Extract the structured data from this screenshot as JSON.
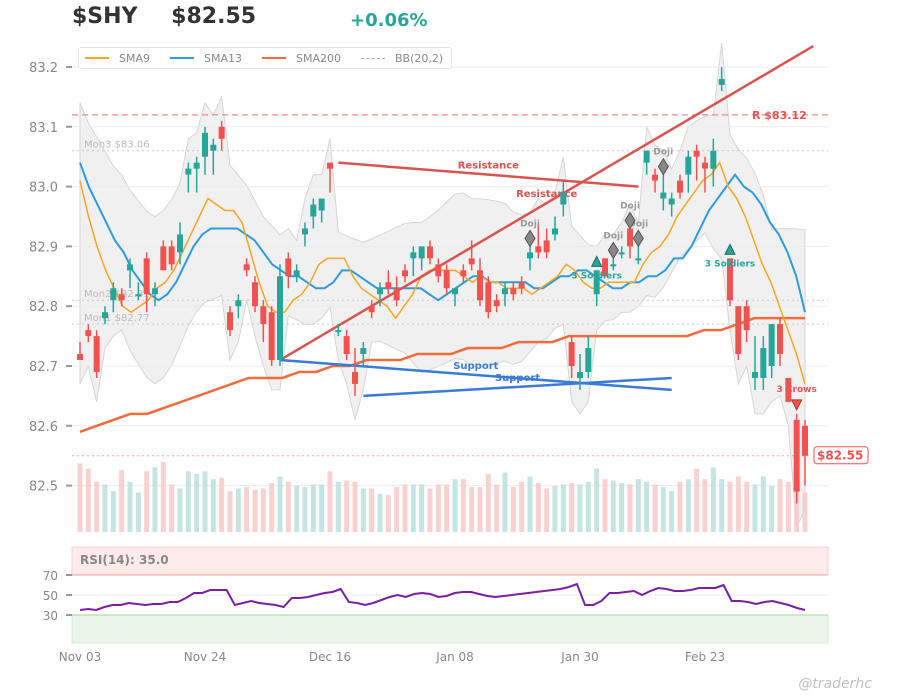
{
  "header": {
    "ticker": "$SHY",
    "price": "$82.55",
    "change": "+0.06%"
  },
  "legend": [
    {
      "label": "SMA9",
      "color": "#f5a623"
    },
    {
      "label": "SMA13",
      "color": "#2d9cdb"
    },
    {
      "label": "SMA200",
      "color": "#f26b38"
    },
    {
      "label": "BB(20,2)",
      "color": "#aaaaaa",
      "dashed": true
    }
  ],
  "watermark": "@traderhc",
  "colors": {
    "up": "#26a69a",
    "down": "#ef5350",
    "rsi": "#7b1fa2",
    "resistance": "#d9534f",
    "support": "#3a7bd5"
  },
  "chart_data": {
    "type": "candlestick",
    "title": "$SHY $82.55 +0.06%",
    "xlabel": "",
    "ylabel": "",
    "ylim": [
      82.44,
      83.24
    ],
    "y_ticks": [
      82.5,
      82.6,
      82.7,
      82.8,
      82.9,
      83.0,
      83.1,
      83.2
    ],
    "x_ticks": [
      {
        "label": "Nov 03",
        "i": 0
      },
      {
        "label": "Nov 24",
        "i": 15
      },
      {
        "label": "Dec 16",
        "i": 30
      },
      {
        "label": "Jan 08",
        "i": 45
      },
      {
        "label": "Jan 30",
        "i": 60
      },
      {
        "label": "Feb 23",
        "i": 75
      }
    ],
    "grid": true,
    "ohlc": [
      [
        82.72,
        82.74,
        82.71,
        82.71
      ],
      [
        82.76,
        82.77,
        82.74,
        82.75
      ],
      [
        82.75,
        82.76,
        82.68,
        82.69
      ],
      [
        82.78,
        82.8,
        82.77,
        82.79
      ],
      [
        82.81,
        82.84,
        82.79,
        82.83
      ],
      [
        82.82,
        82.83,
        82.8,
        82.81
      ],
      [
        82.86,
        82.88,
        82.83,
        82.87
      ],
      [
        82.82,
        82.84,
        82.81,
        82.82
      ],
      [
        82.88,
        82.89,
        82.79,
        82.82
      ],
      [
        82.82,
        82.84,
        82.8,
        82.83
      ],
      [
        82.9,
        82.91,
        82.86,
        82.86
      ],
      [
        82.9,
        82.91,
        82.86,
        82.87
      ],
      [
        82.89,
        82.94,
        82.87,
        82.92
      ],
      [
        83.02,
        83.04,
        82.99,
        83.03
      ],
      [
        83.03,
        83.05,
        82.99,
        83.04
      ],
      [
        83.05,
        83.1,
        83.02,
        83.09
      ],
      [
        83.06,
        83.08,
        83.02,
        83.07
      ],
      [
        83.1,
        83.11,
        83.06,
        83.08
      ],
      [
        82.79,
        82.8,
        82.75,
        82.76
      ],
      [
        82.8,
        82.82,
        82.78,
        82.81
      ],
      [
        82.87,
        82.88,
        82.85,
        82.86
      ],
      [
        82.84,
        82.85,
        82.79,
        82.8
      ],
      [
        82.8,
        82.81,
        82.74,
        82.77
      ],
      [
        82.79,
        82.8,
        82.7,
        82.71
      ],
      [
        82.71,
        82.87,
        82.7,
        82.85
      ],
      [
        82.88,
        82.89,
        82.83,
        82.85
      ],
      [
        82.85,
        82.87,
        82.84,
        82.86
      ],
      [
        82.92,
        82.94,
        82.9,
        82.93
      ],
      [
        82.95,
        82.98,
        82.93,
        82.97
      ],
      [
        82.96,
        82.98,
        82.94,
        82.98
      ],
      [
        83.04,
        83.04,
        82.99,
        83.03
      ],
      [
        82.76,
        82.77,
        82.75,
        82.76
      ],
      [
        82.75,
        82.76,
        82.71,
        82.72
      ],
      [
        82.69,
        82.73,
        82.65,
        82.67
      ],
      [
        82.72,
        82.74,
        82.7,
        82.73
      ],
      [
        82.8,
        82.81,
        82.78,
        82.79
      ],
      [
        82.82,
        82.84,
        82.8,
        82.83
      ],
      [
        82.84,
        82.86,
        82.82,
        82.83
      ],
      [
        82.83,
        82.85,
        82.8,
        82.81
      ],
      [
        82.86,
        82.87,
        82.84,
        82.85
      ],
      [
        82.88,
        82.9,
        82.85,
        82.89
      ],
      [
        82.88,
        82.9,
        82.86,
        82.9
      ],
      [
        82.9,
        82.91,
        82.87,
        82.88
      ],
      [
        82.87,
        82.88,
        82.84,
        82.85
      ],
      [
        82.86,
        82.87,
        82.82,
        82.83
      ],
      [
        82.82,
        82.83,
        82.8,
        82.83
      ],
      [
        82.86,
        82.87,
        82.84,
        82.85
      ],
      [
        82.88,
        82.91,
        82.86,
        82.87
      ],
      [
        82.86,
        82.88,
        82.8,
        82.81
      ],
      [
        82.84,
        82.85,
        82.78,
        82.79
      ],
      [
        82.81,
        82.82,
        82.79,
        82.8
      ],
      [
        82.82,
        82.84,
        82.8,
        82.83
      ],
      [
        82.83,
        82.84,
        82.81,
        82.82
      ],
      [
        82.84,
        82.85,
        82.82,
        82.83
      ],
      [
        82.88,
        82.9,
        82.86,
        82.89
      ],
      [
        82.9,
        82.94,
        82.88,
        82.89
      ],
      [
        82.91,
        82.93,
        82.88,
        82.89
      ],
      [
        82.92,
        82.95,
        82.91,
        82.93
      ],
      [
        82.97,
        83.01,
        82.95,
        82.99
      ],
      [
        82.74,
        82.75,
        82.68,
        82.7
      ],
      [
        82.68,
        82.72,
        82.66,
        82.69
      ],
      [
        82.69,
        82.75,
        82.68,
        82.73
      ],
      [
        82.82,
        82.86,
        82.8,
        82.86
      ],
      [
        82.88,
        82.88,
        82.85,
        82.85
      ],
      [
        82.87,
        82.88,
        82.86,
        82.87
      ],
      [
        82.89,
        82.9,
        82.88,
        82.89
      ],
      [
        82.93,
        82.93,
        82.88,
        82.9
      ],
      [
        82.88,
        82.9,
        82.87,
        82.88
      ],
      [
        83.04,
        83.06,
        83.02,
        83.06
      ],
      [
        83.02,
        83.03,
        82.99,
        83.01
      ],
      [
        82.98,
        83.02,
        82.96,
        82.99
      ],
      [
        82.97,
        82.99,
        82.95,
        82.98
      ],
      [
        83.01,
        83.02,
        82.98,
        82.99
      ],
      [
        83.02,
        83.06,
        82.99,
        83.05
      ],
      [
        83.06,
        83.07,
        83.01,
        83.05
      ],
      [
        83.04,
        83.05,
        82.99,
        83.03
      ],
      [
        83.03,
        83.08,
        83.0,
        83.06
      ],
      [
        83.17,
        83.2,
        83.16,
        83.18
      ],
      [
        82.88,
        82.88,
        82.8,
        82.81
      ],
      [
        82.8,
        82.8,
        82.71,
        82.72
      ],
      [
        82.8,
        82.81,
        82.74,
        82.76
      ],
      [
        82.68,
        82.75,
        82.66,
        82.69
      ],
      [
        82.68,
        82.75,
        82.66,
        82.73
      ],
      [
        82.7,
        82.77,
        82.68,
        82.77
      ],
      [
        82.77,
        82.78,
        82.7,
        82.72
      ],
      [
        82.68,
        82.68,
        82.64,
        82.64
      ],
      [
        82.61,
        82.62,
        82.47,
        82.49
      ],
      [
        82.6,
        82.61,
        82.5,
        82.55
      ]
    ],
    "sma9": [
      83.01,
      82.95,
      82.9,
      82.86,
      82.83,
      82.8,
      82.79,
      82.8,
      82.81,
      82.83,
      82.84,
      82.86,
      82.89,
      82.92,
      82.95,
      82.98,
      82.97,
      82.96,
      82.96,
      82.94,
      82.89,
      82.84,
      82.8,
      82.79,
      82.79,
      82.81,
      82.82,
      82.84,
      82.87,
      82.88,
      82.88,
      82.88,
      82.85,
      82.83,
      82.82,
      82.81,
      82.8,
      82.78,
      82.8,
      82.82,
      82.85,
      82.86,
      82.86,
      82.86,
      82.86,
      82.85,
      82.84,
      82.85,
      82.84,
      82.84,
      82.83,
      82.83,
      82.83,
      82.82,
      82.83,
      82.84,
      82.85,
      82.87,
      82.86,
      82.84,
      82.83,
      82.83,
      82.84,
      82.84,
      82.84,
      82.84,
      82.87,
      82.89,
      82.9,
      82.92,
      82.95,
      82.97,
      82.99,
      83.01,
      83.02,
      83.04,
      83.0,
      82.98,
      82.95,
      82.91,
      82.87,
      82.84,
      82.8,
      82.76,
      82.72,
      82.67
    ],
    "sma13": [
      83.04,
      83.0,
      82.97,
      82.94,
      82.91,
      82.89,
      82.86,
      82.84,
      82.82,
      82.81,
      82.82,
      82.84,
      82.87,
      82.9,
      82.92,
      82.93,
      82.93,
      82.93,
      82.93,
      82.92,
      82.91,
      82.89,
      82.87,
      82.86,
      82.85,
      82.85,
      82.84,
      82.83,
      82.83,
      82.84,
      82.86,
      82.86,
      82.85,
      82.84,
      82.83,
      82.83,
      82.83,
      82.83,
      82.83,
      82.83,
      82.82,
      82.81,
      82.82,
      82.83,
      82.84,
      82.85,
      82.85,
      82.84,
      82.84,
      82.84,
      82.84,
      82.84,
      82.83,
      82.83,
      82.84,
      82.85,
      82.85,
      82.86,
      82.86,
      82.85,
      82.84,
      82.83,
      82.83,
      82.84,
      82.84,
      82.85,
      82.85,
      82.86,
      82.88,
      82.88,
      82.9,
      82.93,
      82.96,
      82.98,
      83.0,
      83.02,
      83.0,
      82.99,
      82.97,
      82.94,
      82.92,
      82.89,
      82.85,
      82.79
    ],
    "sma200": [
      82.59,
      82.6,
      82.61,
      82.62,
      82.62,
      82.63,
      82.64,
      82.65,
      82.66,
      82.67,
      82.68,
      82.68,
      82.68,
      82.69,
      82.69,
      82.7,
      82.7,
      82.71,
      82.71,
      82.71,
      82.72,
      82.72,
      82.72,
      82.73,
      82.73,
      82.73,
      82.74,
      82.74,
      82.74,
      82.75,
      82.75,
      82.75,
      82.75,
      82.75,
      82.75,
      82.75,
      82.75,
      82.76,
      82.76,
      82.77,
      82.78,
      82.78,
      82.78,
      82.78
    ],
    "volume": [
      0.52,
      0.48,
      0.38,
      0.36,
      0.31,
      0.47,
      0.38,
      0.3,
      0.46,
      0.49,
      0.53,
      0.36,
      0.33,
      0.46,
      0.44,
      0.46,
      0.4,
      0.41,
      0.31,
      0.33,
      0.34,
      0.32,
      0.33,
      0.37,
      0.42,
      0.38,
      0.35,
      0.34,
      0.36,
      0.36,
      0.46,
      0.38,
      0.39,
      0.38,
      0.33,
      0.33,
      0.29,
      0.28,
      0.34,
      0.36,
      0.36,
      0.36,
      0.33,
      0.36,
      0.36,
      0.4,
      0.4,
      0.34,
      0.34,
      0.44,
      0.36,
      0.45,
      0.34,
      0.38,
      0.42,
      0.37,
      0.33,
      0.35,
      0.36,
      0.37,
      0.36,
      0.38,
      0.48,
      0.4,
      0.39,
      0.37,
      0.36,
      0.4,
      0.38,
      0.36,
      0.34,
      0.31,
      0.38,
      0.4,
      0.48,
      0.4,
      0.49,
      0.4,
      0.38,
      0.42,
      0.38,
      0.36,
      0.42,
      0.35,
      0.4,
      0.38,
      0.36
    ],
    "rsi": [
      35,
      36,
      35,
      38,
      40,
      40,
      42,
      41,
      40,
      41,
      41,
      43,
      43,
      47,
      52,
      52,
      55,
      55,
      55,
      40,
      42,
      44,
      42,
      41,
      40,
      38,
      47,
      47,
      48,
      50,
      52,
      53,
      56,
      43,
      42,
      40,
      42,
      45,
      48,
      50,
      48,
      51,
      52,
      51,
      48,
      49,
      52,
      53,
      53,
      51,
      49,
      48,
      49,
      50,
      51,
      52,
      53,
      54,
      55,
      56,
      58,
      61,
      40,
      40,
      44,
      52,
      52,
      53,
      54,
      50,
      54,
      57,
      56,
      54,
      54,
      55,
      57,
      57,
      57,
      60,
      44,
      44,
      43,
      41,
      43,
      44,
      42,
      40,
      37,
      35
    ],
    "rsi_label": "RSI(14): 35.0",
    "rsi_levels": [
      30,
      50,
      70
    ],
    "horizontal_levels": [
      {
        "label": "R $83.12",
        "value": 83.12
      },
      {
        "label": "Mon3 $83.06",
        "value": 83.06
      },
      {
        "label": "Mon2 $82.81",
        "value": 82.81
      },
      {
        "label": "Mon1 $82.77",
        "value": 82.77
      },
      {
        "label": "$82.55",
        "value": 82.55
      }
    ],
    "trendlines": [
      {
        "label": "Resistance",
        "kind": "resistance",
        "from": [
          24,
          82.71
        ],
        "to": [
          88,
          83.235
        ]
      },
      {
        "label": "Resistance",
        "kind": "resistance",
        "from": [
          31,
          83.04
        ],
        "to": [
          67,
          83.0
        ]
      },
      {
        "label": "Support",
        "kind": "support",
        "from": [
          24,
          82.71
        ],
        "to": [
          71,
          82.66
        ]
      },
      {
        "label": "Support",
        "kind": "support",
        "from": [
          34,
          82.65
        ],
        "to": [
          71,
          82.68
        ]
      }
    ],
    "annotations": [
      {
        "label": "Doji",
        "i": 54
      },
      {
        "label": "Doji",
        "i": 64
      },
      {
        "label": "Doji",
        "i": 67
      },
      {
        "label": "Doji",
        "i": 66
      },
      {
        "label": "Doji",
        "i": 70
      },
      {
        "label": "3 Soldiers",
        "i": 62
      },
      {
        "label": "3 Soldiers",
        "i": 78
      },
      {
        "label": "3 Crows",
        "i": 86
      }
    ]
  }
}
